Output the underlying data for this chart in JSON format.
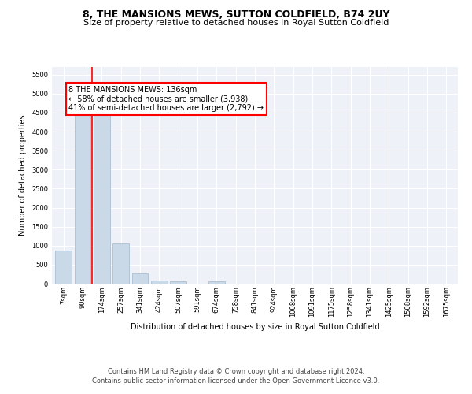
{
  "title": "8, THE MANSIONS MEWS, SUTTON COLDFIELD, B74 2UY",
  "subtitle": "Size of property relative to detached houses in Royal Sutton Coldfield",
  "xlabel": "Distribution of detached houses by size in Royal Sutton Coldfield",
  "ylabel": "Number of detached properties",
  "bar_labels": [
    "7sqm",
    "90sqm",
    "174sqm",
    "257sqm",
    "341sqm",
    "424sqm",
    "507sqm",
    "591sqm",
    "674sqm",
    "758sqm",
    "841sqm",
    "924sqm",
    "1008sqm",
    "1091sqm",
    "1175sqm",
    "1258sqm",
    "1341sqm",
    "1425sqm",
    "1508sqm",
    "1592sqm",
    "1675sqm"
  ],
  "bar_values": [
    880,
    4500,
    4500,
    1050,
    270,
    80,
    70,
    0,
    55,
    0,
    0,
    0,
    0,
    0,
    0,
    0,
    0,
    0,
    0,
    0,
    0
  ],
  "bar_color": "#c9d9e8",
  "bar_edge_color": "#a0b8cc",
  "vline_x": 1.5,
  "vline_color": "red",
  "annotation_text": "8 THE MANSIONS MEWS: 136sqm\n← 58% of detached houses are smaller (3,938)\n41% of semi-detached houses are larger (2,792) →",
  "annotation_box_facecolor": "white",
  "annotation_box_edgecolor": "red",
  "ylim": [
    0,
    5700
  ],
  "yticks": [
    0,
    500,
    1000,
    1500,
    2000,
    2500,
    3000,
    3500,
    4000,
    4500,
    5000,
    5500
  ],
  "footer_line1": "Contains HM Land Registry data © Crown copyright and database right 2024.",
  "footer_line2": "Contains public sector information licensed under the Open Government Licence v3.0.",
  "plot_bg_color": "#eef2f8",
  "title_fontsize": 9,
  "subtitle_fontsize": 8,
  "axis_fontsize": 7,
  "tick_fontsize": 6,
  "footer_fontsize": 6,
  "annotation_fontsize": 7
}
